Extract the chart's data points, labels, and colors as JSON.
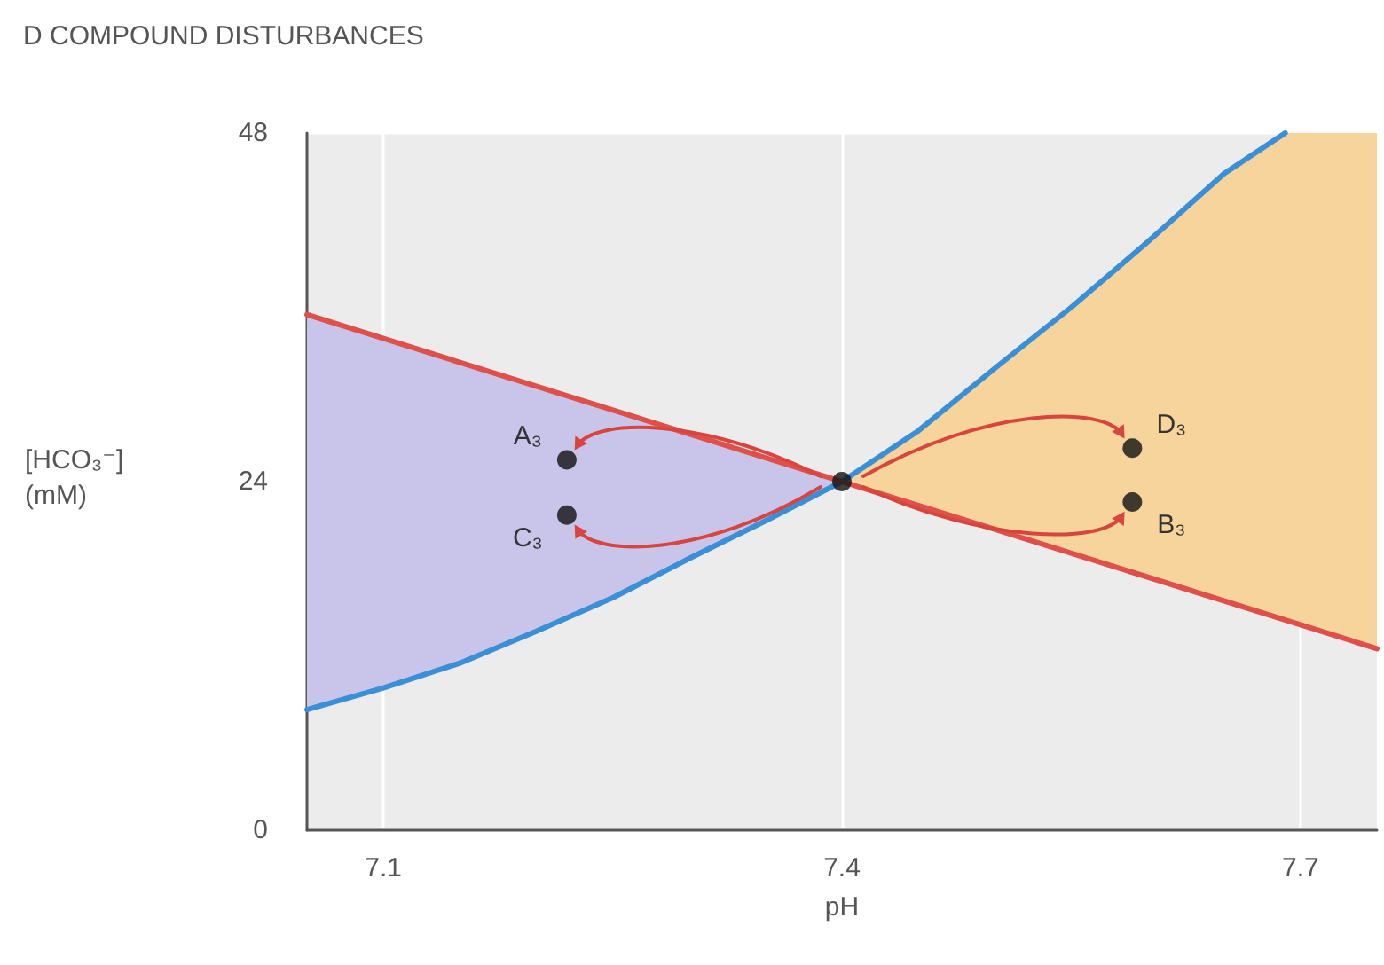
{
  "chart_data": {
    "type": "line",
    "title": "D COMPOUND DISTURBANCES",
    "xlabel": "pH",
    "ylabel": "[HCO₃⁻] (mM)",
    "xlim": [
      7.05,
      7.75
    ],
    "xticks": [
      7.1,
      7.4,
      7.7
    ],
    "ylim": [
      0,
      48
    ],
    "yticks": [
      0,
      24,
      48
    ],
    "grid": true,
    "series": [
      {
        "color": "#3b8fd6",
        "x": [
          7.05,
          7.1,
          7.15,
          7.2,
          7.25,
          7.3,
          7.35,
          7.4,
          7.45,
          7.5,
          7.55,
          7.6,
          7.65,
          7.69
        ],
        "values": [
          8.3,
          9.8,
          11.5,
          13.7,
          16,
          18.7,
          21.3,
          24,
          27.5,
          31.8,
          36,
          40.5,
          45.2,
          48
        ]
      },
      {
        "color": "#e0504a",
        "x": [
          7.05,
          7.4,
          7.75
        ],
        "values": [
          35.5,
          24,
          12.5
        ]
      },
      {
        "type": "scatter",
        "color": "#111111",
        "x": [
          7.22,
          7.22,
          7.4,
          7.59,
          7.59
        ],
        "values": [
          25.5,
          21.7,
          24,
          26.3,
          22.6
        ],
        "value_labels": [
          "A₃",
          "C₃",
          null,
          "D₃",
          "B₃"
        ]
      }
    ]
  }
}
